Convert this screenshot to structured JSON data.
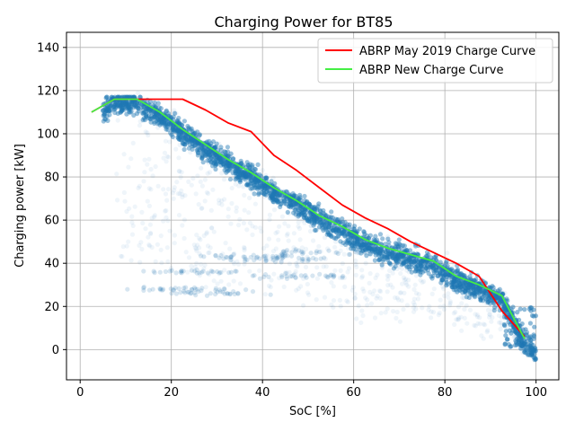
{
  "chart_data": {
    "type": "scatter",
    "title": "Charging Power for BT85",
    "xlabel": "SoC [%]",
    "ylabel": "Charging power [kW]",
    "xlim": [
      -3,
      105
    ],
    "ylim": [
      -14,
      147
    ],
    "xticks": [
      0,
      20,
      40,
      60,
      80,
      100
    ],
    "yticks": [
      0,
      20,
      40,
      60,
      80,
      100,
      120,
      140
    ],
    "grid": true,
    "legend_position": "top-right",
    "scatter_color": "#1f77b4",
    "series": [
      {
        "name": "ABRP May 2019 Charge Curve",
        "color": "#ff0000",
        "x": [
          2.5,
          7.5,
          12.5,
          17.5,
          22.5,
          27.5,
          32.5,
          37.5,
          42.5,
          47.5,
          52.5,
          57.5,
          62.5,
          67.5,
          72.5,
          77.5,
          82.5,
          87.5,
          92.5,
          97.5
        ],
        "y": [
          110,
          116,
          116,
          116,
          116,
          111,
          105,
          101,
          90,
          83,
          75,
          67,
          61,
          56,
          50,
          45,
          40,
          34,
          18,
          6
        ]
      },
      {
        "name": "ABRP New Charge Curve",
        "color": "#44ee44",
        "x": [
          2.5,
          7.5,
          12.5,
          17.5,
          22.5,
          27.5,
          32.5,
          37.5,
          42.5,
          47.5,
          52.5,
          57.5,
          62.5,
          67.5,
          72.5,
          77.5,
          82.5,
          87.5,
          92.5,
          97.5
        ],
        "y": [
          110,
          116,
          116,
          110,
          102,
          95,
          88,
          82,
          75,
          69,
          62,
          57,
          51,
          47,
          44,
          41,
          34,
          30,
          25,
          5
        ]
      }
    ],
    "scatter_description": "dense cloud of charging sessions following the charge curve from about 115 kW at 10% SoC down to 0 kW at 100% SoC, with sparse outliers"
  }
}
